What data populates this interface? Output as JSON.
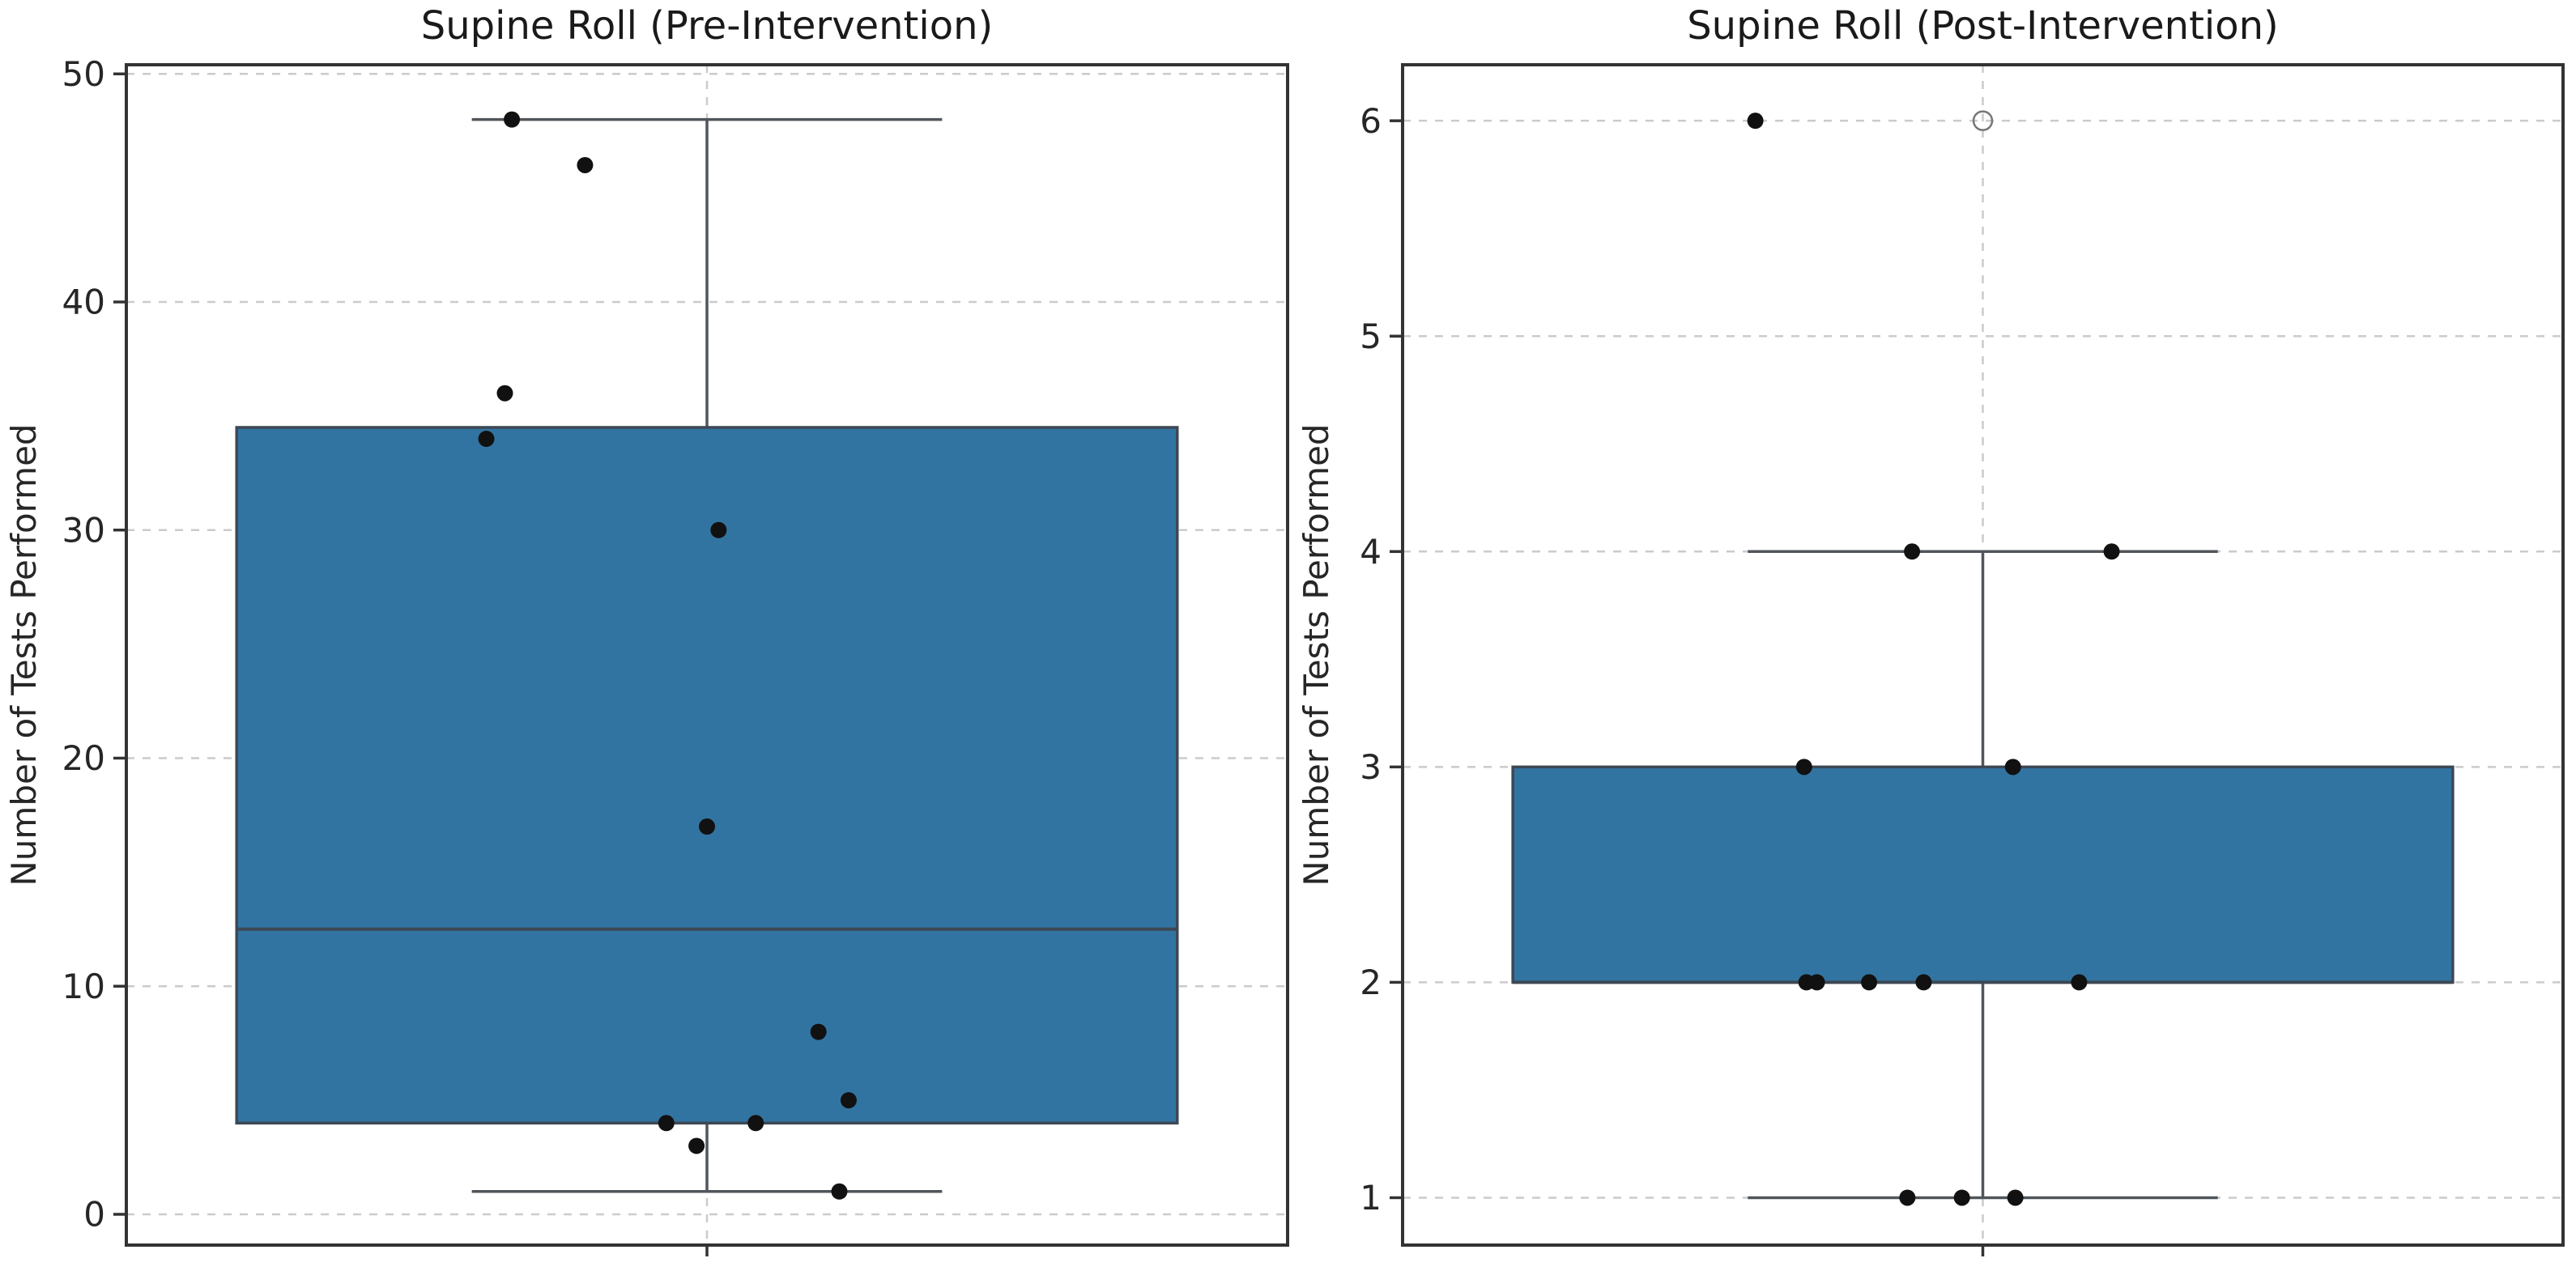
{
  "figure": {
    "background": "#ffffff"
  },
  "colors": {
    "box_fill": "#3274a1",
    "box_edge": "#3d4854",
    "median": "#3d4854",
    "whisker": "#50565b",
    "point": "#111111",
    "flier_edge": "#777777",
    "grid": "#cbcbcb",
    "spine": "#333333",
    "tick_label": "#262626",
    "title": "#1a1a1a"
  },
  "chart_data": [
    {
      "type": "box",
      "title": "Supine Roll (Pre-Intervention)",
      "ylabel": "Number of Tests Performed",
      "xlabel": "",
      "yticks": [
        0,
        10,
        20,
        30,
        40,
        50
      ],
      "ylim": [
        -1.35,
        50.4
      ],
      "grid": "dashed horizontal at yticks plus dashed vertical at category center",
      "legend": "none",
      "box_stats": {
        "whisker_low": 1,
        "q1": 4,
        "median": 12.5,
        "q3": 34.5,
        "whisker_high": 48,
        "fliers": []
      },
      "points": [
        {
          "value": 48,
          "xfrac": 0.332
        },
        {
          "value": 46,
          "xfrac": 0.395
        },
        {
          "value": 36,
          "xfrac": 0.326
        },
        {
          "value": 34,
          "xfrac": 0.31
        },
        {
          "value": 30,
          "xfrac": 0.51
        },
        {
          "value": 17,
          "xfrac": 0.5
        },
        {
          "value": 8,
          "xfrac": 0.596
        },
        {
          "value": 5,
          "xfrac": 0.622
        },
        {
          "value": 4,
          "xfrac": 0.465
        },
        {
          "value": 4,
          "xfrac": 0.542
        },
        {
          "value": 3,
          "xfrac": 0.491
        },
        {
          "value": 1,
          "xfrac": 0.614
        }
      ]
    },
    {
      "type": "box",
      "title": "Supine Roll (Post-Intervention)",
      "ylabel": "Number of Tests Performed",
      "xlabel": "",
      "yticks": [
        1,
        2,
        3,
        4,
        5,
        6
      ],
      "ylim": [
        0.78,
        6.26
      ],
      "grid": "dashed horizontal at yticks plus dashed vertical at category center",
      "legend": "none",
      "box_stats": {
        "whisker_low": 1,
        "q1": 2,
        "median": 2,
        "q3": 3,
        "whisker_high": 4,
        "fliers": [
          6
        ]
      },
      "points": [
        {
          "value": 6,
          "xfrac": 0.304
        },
        {
          "value": 4,
          "xfrac": 0.439
        },
        {
          "value": 4,
          "xfrac": 0.611
        },
        {
          "value": 3,
          "xfrac": 0.346
        },
        {
          "value": 3,
          "xfrac": 0.526
        },
        {
          "value": 2,
          "xfrac": 0.348
        },
        {
          "value": 2,
          "xfrac": 0.357
        },
        {
          "value": 2,
          "xfrac": 0.402
        },
        {
          "value": 2,
          "xfrac": 0.449
        },
        {
          "value": 2,
          "xfrac": 0.583
        },
        {
          "value": 1,
          "xfrac": 0.435
        },
        {
          "value": 1,
          "xfrac": 0.482
        },
        {
          "value": 1,
          "xfrac": 0.528
        }
      ]
    }
  ]
}
